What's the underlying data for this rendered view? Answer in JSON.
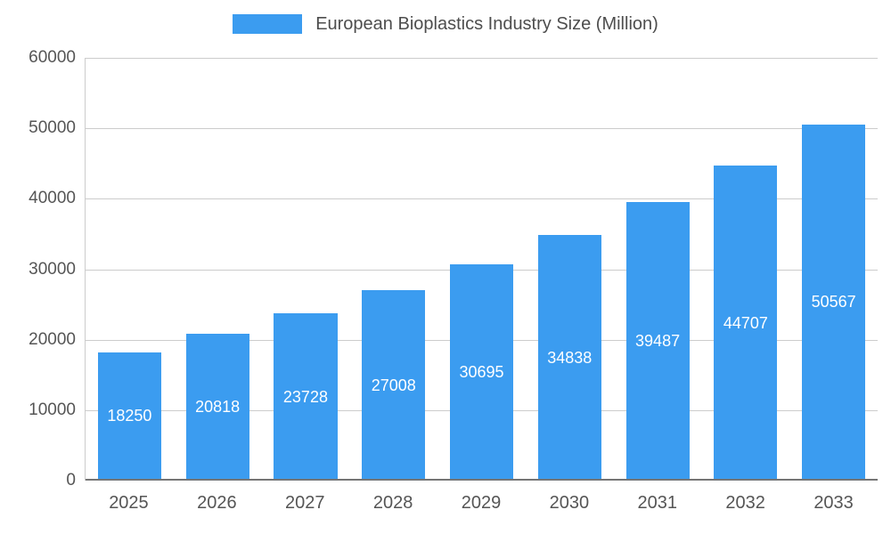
{
  "legend": {
    "label": "European Bioplastics Industry Size (Million)"
  },
  "colors": {
    "bar": "#3b9cf0",
    "bar_value_text": "#ffffff",
    "axis_text": "#555555",
    "title_text": "#4d4d4d",
    "grid": "#cccccc",
    "baseline": "#757575"
  },
  "chart_data": {
    "type": "bar",
    "title": "European Bioplastics Industry Size (Million)",
    "categories": [
      "2025",
      "2026",
      "2027",
      "2028",
      "2029",
      "2030",
      "2031",
      "2032",
      "2033"
    ],
    "values": [
      18250,
      20818,
      23728,
      27008,
      30695,
      34838,
      39487,
      44707,
      50567
    ],
    "xlabel": "",
    "ylabel": "",
    "ylim": [
      0,
      60000
    ],
    "ytick_step": 10000,
    "yticks": [
      0,
      10000,
      20000,
      30000,
      40000,
      50000,
      60000
    ],
    "grid": true,
    "legend_position": "top",
    "bar_labels": true,
    "bar_label_position": "inside-center"
  }
}
